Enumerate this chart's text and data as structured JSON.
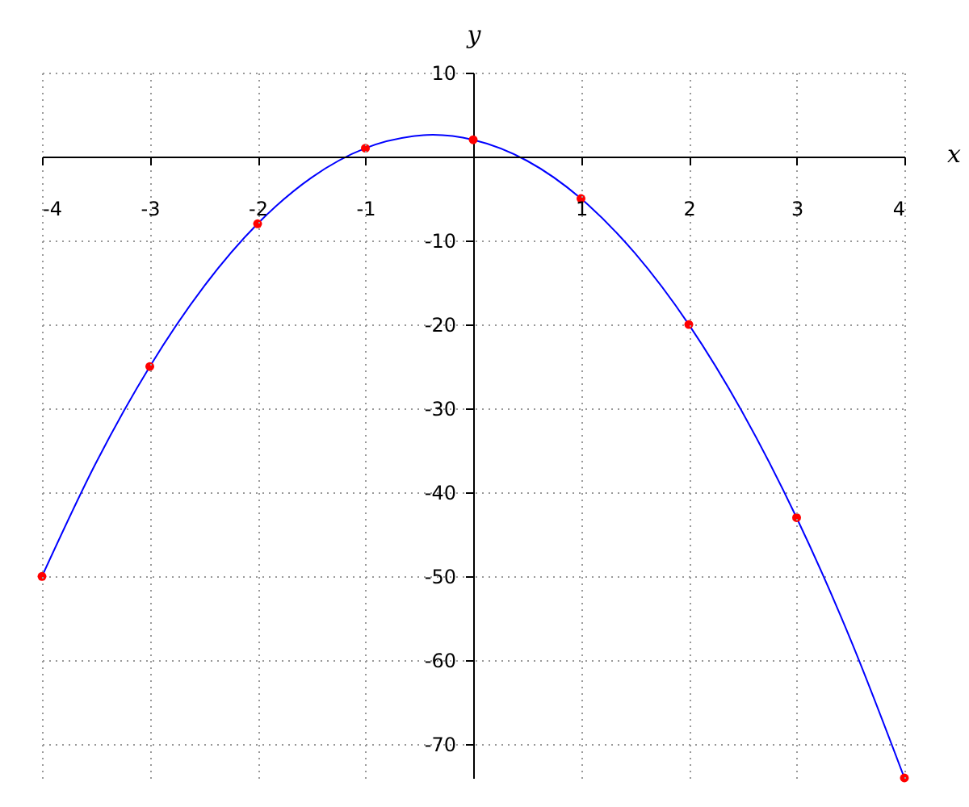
{
  "chart_data": {
    "type": "line",
    "xlabel": "x",
    "ylabel": "y",
    "xlim": [
      -4,
      4
    ],
    "ylim": [
      -74,
      10
    ],
    "xticks": [
      -4,
      -3,
      -2,
      -1,
      1,
      2,
      3,
      4
    ],
    "yticks": [
      10,
      -10,
      -20,
      -30,
      -40,
      -50,
      -60,
      -70
    ],
    "grid": true,
    "series": [
      {
        "color": "#0000ff",
        "marker": "none",
        "x": [
          -4,
          -3.5,
          -3,
          -2.5,
          -2,
          -1.5,
          -1,
          -0.5,
          -0.375,
          0,
          0.5,
          1,
          1.5,
          2,
          2.5,
          3,
          3.5,
          4
        ],
        "values": [
          -50,
          -36.5,
          -25,
          -15.5,
          -8,
          -2.5,
          1,
          2.5,
          2.6,
          2,
          -0.5,
          -5,
          -11.5,
          -20,
          -30.5,
          -43,
          -57.5,
          -74
        ]
      },
      {
        "type": "scatter",
        "color": "#ff0000",
        "marker": "circle",
        "x": [
          -4,
          -3,
          -2,
          -1,
          0,
          1,
          2,
          3,
          4
        ],
        "values": [
          -50,
          -25,
          -8,
          1,
          2,
          -5,
          -20,
          -43,
          -74
        ]
      }
    ]
  }
}
